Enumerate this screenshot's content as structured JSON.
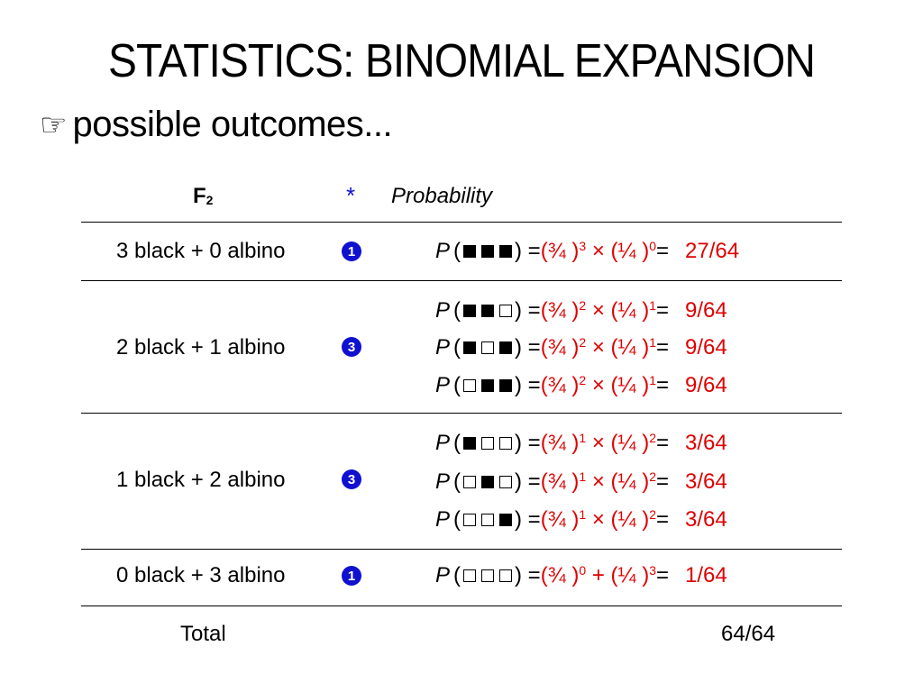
{
  "title": "STATISTICS: BINOMIAL EXPANSION",
  "bullet": "possible outcomes...",
  "headers": {
    "f2": "F",
    "f2_sub": "2",
    "star": "*",
    "probability": "Probability"
  },
  "rows": [
    {
      "label": "3 black + 0 albino",
      "count": "1",
      "outcomes": [
        {
          "pattern": "BBB",
          "a_exp": "3",
          "op": "×",
          "b_exp": "0",
          "result": "27/64"
        }
      ]
    },
    {
      "label": "2 black + 1 albino",
      "count": "3",
      "outcomes": [
        {
          "pattern": "BBW",
          "a_exp": "2",
          "op": "×",
          "b_exp": "1",
          "result": "9/64"
        },
        {
          "pattern": "BWB",
          "a_exp": "2",
          "op": "×",
          "b_exp": "1",
          "result": "9/64"
        },
        {
          "pattern": "WBB",
          "a_exp": "2",
          "op": "×",
          "b_exp": "1",
          "result": "9/64"
        }
      ]
    },
    {
      "label": "1 black + 2 albino",
      "count": "3",
      "outcomes": [
        {
          "pattern": "BWW",
          "a_exp": "1",
          "op": "×",
          "b_exp": "2",
          "result": "3/64"
        },
        {
          "pattern": "WBW",
          "a_exp": "1",
          "op": "×",
          "b_exp": "2",
          "result": "3/64"
        },
        {
          "pattern": "WWB",
          "a_exp": "1",
          "op": "×",
          "b_exp": "2",
          "result": "3/64"
        }
      ]
    },
    {
      "label": "0 black + 3 albino",
      "count": "1",
      "outcomes": [
        {
          "pattern": "WWW",
          "a_exp": "0",
          "op": "+",
          "b_exp": "3",
          "result": "1/64"
        }
      ]
    }
  ],
  "total": {
    "label": "Total",
    "value": "64/64"
  },
  "colors": {
    "accent_blue": "#1010d0",
    "probability_red": "#e00000"
  }
}
